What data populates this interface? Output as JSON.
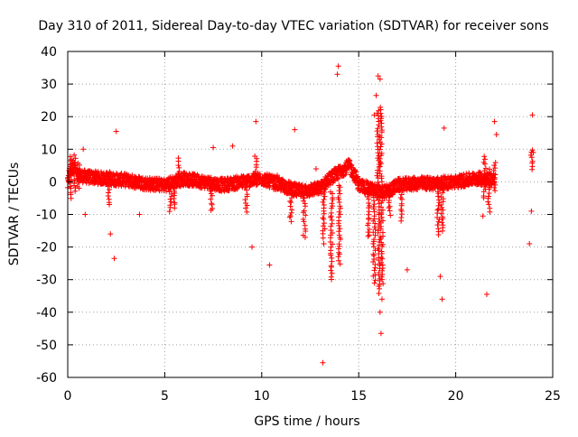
{
  "chart_data": {
    "type": "scatter",
    "title": "Day 310 of 2011, Sidereal Day-to-day VTEC variation (SDTVAR) for receiver sons",
    "xlabel": "GPS time / hours",
    "ylabel": "SDTVAR / TECUs",
    "xlim": [
      0,
      25
    ],
    "ylim": [
      -60,
      40
    ],
    "x_ticks": [
      0,
      5,
      10,
      15,
      20,
      25
    ],
    "y_ticks": [
      -60,
      -50,
      -40,
      -30,
      -20,
      -10,
      0,
      10,
      20,
      30,
      40
    ],
    "grid": true,
    "marker": "+",
    "color": "#ff0000",
    "baseline": [
      [
        0.0,
        -1
      ],
      [
        0.1,
        3
      ],
      [
        0.3,
        5
      ],
      [
        0.5,
        2
      ],
      [
        1.0,
        1.5
      ],
      [
        2.0,
        1
      ],
      [
        3.0,
        0.5
      ],
      [
        4.0,
        -0.5
      ],
      [
        5.0,
        -1
      ],
      [
        5.5,
        0
      ],
      [
        6.0,
        1
      ],
      [
        7.0,
        0
      ],
      [
        8.0,
        -1
      ],
      [
        9.0,
        0
      ],
      [
        10.0,
        1
      ],
      [
        11.0,
        -1
      ],
      [
        12.0,
        -3
      ],
      [
        13.0,
        -2
      ],
      [
        13.5,
        1
      ],
      [
        14.0,
        3
      ],
      [
        14.5,
        5
      ],
      [
        14.8,
        2
      ],
      [
        15.0,
        -1
      ],
      [
        15.5,
        -2
      ],
      [
        16.0,
        -3
      ],
      [
        16.5,
        -3
      ],
      [
        17.0,
        -1
      ],
      [
        18.0,
        -0.5
      ],
      [
        19.0,
        -0.5
      ],
      [
        20.0,
        0
      ],
      [
        21.0,
        1
      ],
      [
        21.5,
        1
      ],
      [
        22.0,
        1
      ]
    ],
    "streaks": [
      {
        "x": 0.15,
        "y1": -5,
        "y2": 8
      },
      {
        "x": 0.35,
        "y1": -3,
        "y2": 8
      },
      {
        "x": 0.55,
        "y1": -2,
        "y2": 6
      },
      {
        "x": 2.1,
        "y1": -7,
        "y2": 3
      },
      {
        "x": 5.3,
        "y1": -9,
        "y2": -1
      },
      {
        "x": 5.5,
        "y1": -8,
        "y2": 0
      },
      {
        "x": 5.7,
        "y1": -1,
        "y2": 7
      },
      {
        "x": 7.4,
        "y1": -9,
        "y2": -1
      },
      {
        "x": 9.2,
        "y1": -9,
        "y2": -1
      },
      {
        "x": 9.7,
        "y1": -1,
        "y2": 8
      },
      {
        "x": 11.5,
        "y1": -12,
        "y2": -2
      },
      {
        "x": 12.2,
        "y1": -17,
        "y2": -4
      },
      {
        "x": 13.2,
        "y1": -17,
        "y2": -2
      },
      {
        "x": 13.6,
        "y1": -30,
        "y2": -3
      },
      {
        "x": 14.0,
        "y1": -25,
        "y2": -1
      },
      {
        "x": 15.5,
        "y1": -17,
        "y2": -3
      },
      {
        "x": 15.8,
        "y1": -31,
        "y2": -3
      },
      {
        "x": 16.05,
        "y1": -34,
        "y2": -3
      },
      {
        "x": 16.2,
        "y1": -31,
        "y2": -3
      },
      {
        "x": 16.0,
        "y1": 0,
        "y2": 22
      },
      {
        "x": 16.15,
        "y1": 0,
        "y2": 23
      },
      {
        "x": 16.6,
        "y1": -10,
        "y2": -2
      },
      {
        "x": 17.2,
        "y1": -12,
        "y2": -1
      },
      {
        "x": 19.1,
        "y1": -16,
        "y2": -1
      },
      {
        "x": 19.3,
        "y1": -15,
        "y2": -1
      },
      {
        "x": 21.5,
        "y1": -5,
        "y2": 8
      },
      {
        "x": 21.7,
        "y1": -9,
        "y2": 4
      },
      {
        "x": 22.0,
        "y1": -3,
        "y2": 6
      },
      {
        "x": 23.9,
        "y1": 4,
        "y2": 10
      }
    ],
    "outliers": [
      [
        2.2,
        -16
      ],
      [
        2.4,
        -23.5
      ],
      [
        2.5,
        15.5
      ],
      [
        3.7,
        -10
      ],
      [
        7.5,
        10.5
      ],
      [
        9.5,
        -20
      ],
      [
        9.7,
        18.5
      ],
      [
        10.4,
        -25.5
      ],
      [
        11.7,
        16
      ],
      [
        13.15,
        -55.5
      ],
      [
        13.2,
        -19
      ],
      [
        13.9,
        33
      ],
      [
        13.95,
        35.5
      ],
      [
        16.0,
        32.5
      ],
      [
        16.1,
        31.5
      ],
      [
        15.9,
        26.5
      ],
      [
        15.8,
        20.5
      ],
      [
        16.15,
        -46.5
      ],
      [
        16.1,
        -40
      ],
      [
        16.2,
        -36
      ],
      [
        17.5,
        -27
      ],
      [
        19.2,
        -29
      ],
      [
        19.3,
        -36
      ],
      [
        19.4,
        16.5
      ],
      [
        21.6,
        -34.5
      ],
      [
        21.4,
        -10.5
      ],
      [
        22.0,
        18.5
      ],
      [
        22.1,
        14.5
      ],
      [
        23.8,
        -19
      ],
      [
        23.9,
        -9
      ],
      [
        23.95,
        20.5
      ],
      [
        24.0,
        9
      ],
      [
        0.9,
        -10
      ],
      [
        0.8,
        10
      ],
      [
        8.5,
        11
      ],
      [
        10.8,
        2
      ],
      [
        12.8,
        4
      ]
    ]
  }
}
